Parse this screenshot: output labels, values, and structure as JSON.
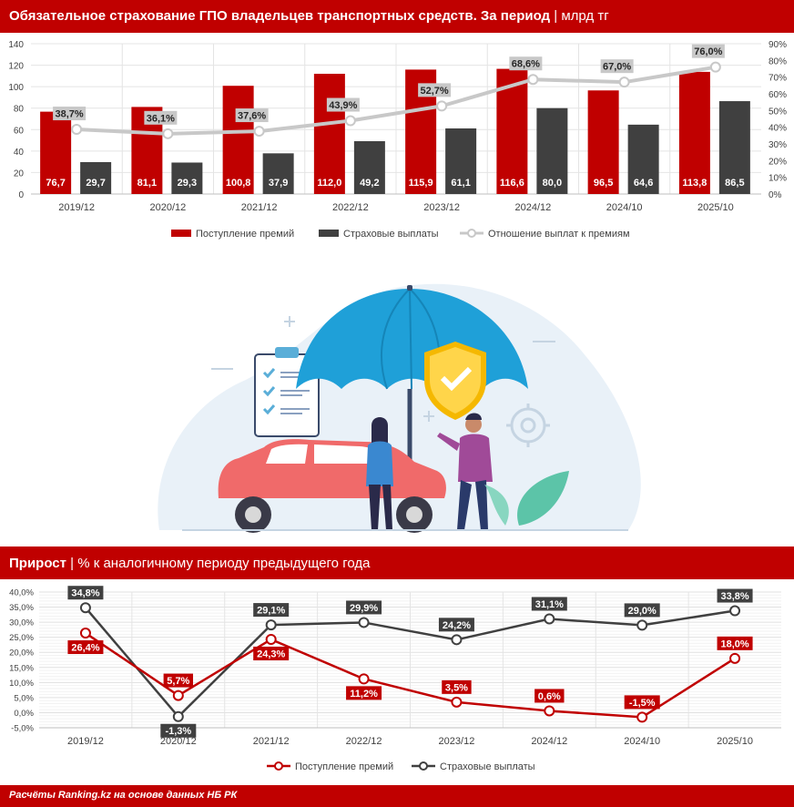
{
  "top_chart": {
    "title": "Обязательное страхование ГПО владельцев транспортных средств. За период",
    "unit": "млрд тг",
    "separator": "|",
    "legend": [
      "Поступление премий",
      "Страховые выплаты",
      "Отношение выплат к премиям"
    ],
    "colors": {
      "premiums": "#c00000",
      "payouts": "#404040",
      "ratio": "#c8c8c8"
    }
  },
  "bottom_chart": {
    "title": "Прирост",
    "subtitle": "% к аналогичному периоду предыдущего года",
    "separator": "|",
    "legend": [
      "Поступление премий",
      "Страховые выплаты"
    ],
    "colors": {
      "premiums": "#c00000",
      "payouts": "#404040"
    }
  },
  "footer": "Расчёты Ranking.kz на основе данных НБ РК",
  "chart_data": [
    {
      "type": "bar",
      "title": "Обязательное страхование ГПО владельцев транспортных средств. За период",
      "categories": [
        "2019/12",
        "2020/12",
        "2021/12",
        "2022/12",
        "2023/12",
        "2024/12",
        "2024/10",
        "2025/10"
      ],
      "series": [
        {
          "name": "Поступление премий",
          "values": [
            76.7,
            81.1,
            100.8,
            112.0,
            115.9,
            116.6,
            96.5,
            113.8
          ],
          "labels": [
            "76,7",
            "81,1",
            "100,8",
            "112,0",
            "115,9",
            "116,6",
            "96,5",
            "113,8"
          ]
        },
        {
          "name": "Страховые выплаты",
          "values": [
            29.7,
            29.3,
            37.9,
            49.2,
            61.1,
            80.0,
            64.6,
            86.5
          ],
          "labels": [
            "29,7",
            "29,3",
            "37,9",
            "49,2",
            "61,1",
            "80,0",
            "64,6",
            "86,5"
          ]
        },
        {
          "name": "Отношение выплат к премиям",
          "axis": "right",
          "values": [
            38.7,
            36.1,
            37.6,
            43.9,
            52.7,
            68.6,
            67.0,
            76.0
          ],
          "labels": [
            "38,7%",
            "36,1%",
            "37,6%",
            "43,9%",
            "52,7%",
            "68,6%",
            "67,0%",
            "76,0%"
          ]
        }
      ],
      "ylim": [
        0,
        140
      ],
      "yticks": [
        "0",
        "20",
        "40",
        "60",
        "80",
        "100",
        "120",
        "140"
      ],
      "y2lim": [
        0,
        90
      ],
      "y2ticks": [
        "0%",
        "10%",
        "20%",
        "30%",
        "40%",
        "50%",
        "60%",
        "70%",
        "80%",
        "90%"
      ],
      "legend_position": "bottom",
      "grid": true
    },
    {
      "type": "line",
      "title": "Прирост",
      "categories": [
        "2019/12",
        "2020/12",
        "2021/12",
        "2022/12",
        "2023/12",
        "2024/12",
        "2024/10",
        "2025/10"
      ],
      "series": [
        {
          "name": "Поступление премий",
          "values": [
            26.4,
            5.7,
            24.3,
            11.2,
            3.5,
            0.6,
            -1.5,
            18.0
          ],
          "labels": [
            "26,4%",
            "5,7%",
            "24,3%",
            "11,2%",
            "3,5%",
            "0,6%",
            "-1,5%",
            "18,0%"
          ]
        },
        {
          "name": "Страховые выплаты",
          "values": [
            34.8,
            -1.3,
            29.1,
            29.9,
            24.2,
            31.1,
            29.0,
            33.8
          ],
          "labels": [
            "34,8%",
            "-1,3%",
            "29,1%",
            "29,9%",
            "24,2%",
            "31,1%",
            "29,0%",
            "33,8%"
          ]
        }
      ],
      "ylim": [
        -5,
        40
      ],
      "yticks": [
        "-5,0%",
        "0,0%",
        "5,0%",
        "10,0%",
        "15,0%",
        "20,0%",
        "25,0%",
        "30,0%",
        "35,0%",
        "40,0%"
      ],
      "legend_position": "bottom",
      "grid": true
    }
  ]
}
